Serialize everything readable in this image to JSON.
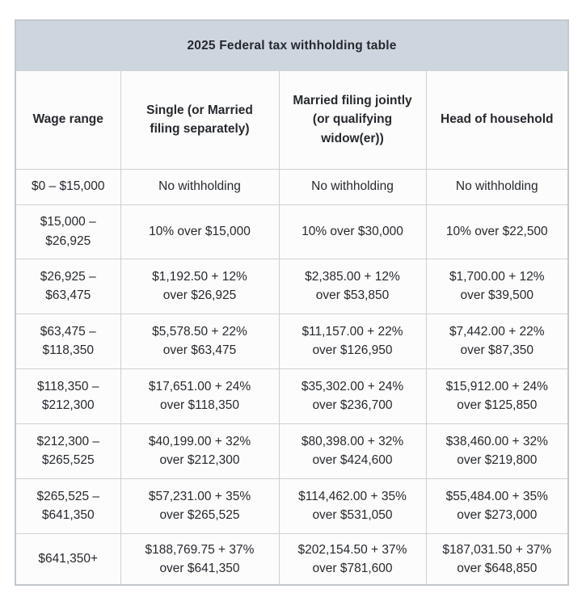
{
  "title": "2025 Federal tax withholding table",
  "colors": {
    "title_background": "#cdd6de",
    "table_background": "#fcfcfc",
    "border": "#cdd1d5",
    "outer_border": "#c3c8cd",
    "text": "#26292e"
  },
  "table": {
    "headers_display": [
      "Wage range",
      "Single (or Married\nfiling separately)",
      "Married filing jointly\n(or qualifying\nwidow(er))",
      "Head of household"
    ],
    "rows_display": [
      [
        "$0 – $15,000",
        "No withholding",
        "No withholding",
        "No withholding"
      ],
      [
        "$15,000 –\n$26,925",
        "10% over $15,000",
        "10% over $30,000",
        "10% over $22,500"
      ],
      [
        "$26,925 –\n$63,475",
        "$1,192.50 + 12%\nover $26,925",
        "$2,385.00 + 12%\nover $53,850",
        "$1,700.00 + 12%\nover $39,500"
      ],
      [
        "$63,475 –\n$118,350",
        "$5,578.50 + 22%\nover $63,475",
        "$11,157.00 + 22%\nover $126,950",
        "$7,442.00 + 22%\nover $87,350"
      ],
      [
        "$118,350 –\n$212,300",
        "$17,651.00 + 24%\nover $118,350",
        "$35,302.00 + 24%\nover $236,700",
        "$15,912.00 + 24%\nover $125,850"
      ],
      [
        "$212,300 –\n$265,525",
        "$40,199.00 + 32%\nover $212,300",
        "$80,398.00 + 32%\nover $424,600",
        "$38,460.00 + 32%\nover $219,800"
      ],
      [
        "$265,525 –\n$641,350",
        "$57,231.00 + 35%\nover $265,525",
        "$114,462.00 + 35%\nover $531,050",
        "$55,484.00 + 35%\nover $273,000"
      ],
      [
        "$641,350+",
        "$188,769.75 + 37%\nover $641,350",
        "$202,154.50 + 37%\nover $781,600",
        "$187,031.50 + 37%\nover $648,850"
      ]
    ]
  },
  "chart_data": {
    "type": "table",
    "title": "2025 Federal tax withholding table",
    "columns": [
      "Wage range",
      "Single (or Married filing separately)",
      "Married filing jointly (or qualifying widow(er))",
      "Head of household"
    ],
    "rows": [
      [
        "$0 – $15,000",
        "No withholding",
        "No withholding",
        "No withholding"
      ],
      [
        "$15,000 – $26,925",
        "10% over $15,000",
        "10% over $30,000",
        "10% over $22,500"
      ],
      [
        "$26,925 – $63,475",
        "$1,192.50 + 12% over $26,925",
        "$2,385.00 + 12% over $53,850",
        "$1,700.00 + 12% over $39,500"
      ],
      [
        "$63,475 – $118,350",
        "$5,578.50 + 22% over $63,475",
        "$11,157.00 + 22% over $126,950",
        "$7,442.00 + 22% over $87,350"
      ],
      [
        "$118,350 – $212,300",
        "$17,651.00 + 24% over $118,350",
        "$35,302.00 + 24% over $236,700",
        "$15,912.00 + 24% over $125,850"
      ],
      [
        "$212,300 – $265,525",
        "$40,199.00 + 32% over $212,300",
        "$80,398.00 + 32% over $424,600",
        "$38,460.00 + 32% over $219,800"
      ],
      [
        "$265,525 – $641,350",
        "$57,231.00 + 35% over $265,525",
        "$114,462.00 + 35% over $531,050",
        "$55,484.00 + 35% over $273,000"
      ],
      [
        "$641,350+",
        "$188,769.75 + 37% over $641,350",
        "$202,154.50 + 37% over $781,600",
        "$187,031.50 + 37% over $648,850"
      ]
    ]
  }
}
